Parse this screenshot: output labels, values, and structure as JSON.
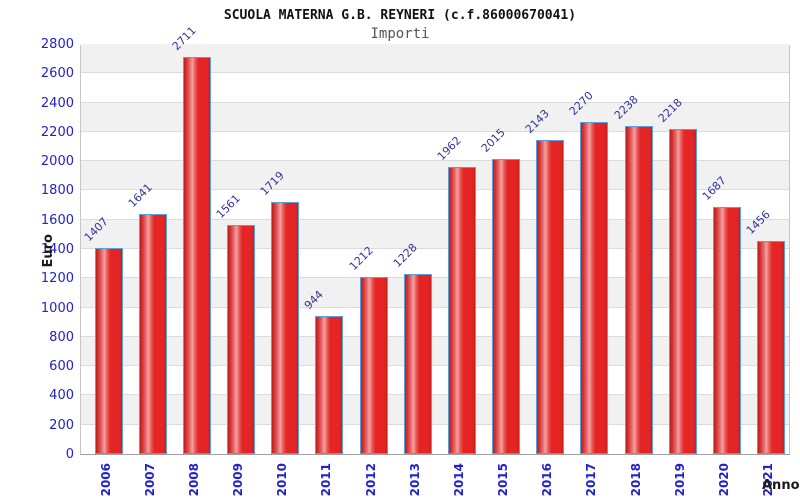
{
  "header": {
    "title": "SCUOLA MATERNA G.B. REYNERI (c.f.86000670041)",
    "subtitle": "Importi"
  },
  "chart_data": {
    "type": "bar",
    "title": "SCUOLA MATERNA G.B. REYNERI (c.f.86000670041)",
    "subtitle": "Importi",
    "xlabel": "Anno",
    "ylabel": "Euro",
    "categories": [
      "2006",
      "2007",
      "2008",
      "2009",
      "2010",
      "2011",
      "2012",
      "2013",
      "2014",
      "2015",
      "2016",
      "2017",
      "2018",
      "2019",
      "2020",
      "2021"
    ],
    "values": [
      1407,
      1641,
      2711,
      1561,
      1719,
      944,
      1212,
      1228,
      1962,
      2015,
      2143,
      2270,
      2238,
      2218,
      1687,
      1456
    ],
    "ylim": [
      0,
      2800
    ],
    "ytick_step": 200,
    "yticks": [
      0,
      200,
      400,
      600,
      800,
      1000,
      1200,
      1400,
      1600,
      1800,
      2000,
      2200,
      2400,
      2600,
      2800
    ],
    "grid": "horizontal",
    "legend": "none",
    "colors": {
      "bar_fill": "#e42525",
      "bar_highlight": "#f2a2a2",
      "bar_border": "#58a0e0",
      "value_label": "#333399",
      "tick_label": "#2222cc",
      "band_alt": "#f1f1f1",
      "gridline": "#dcdcdc"
    }
  }
}
